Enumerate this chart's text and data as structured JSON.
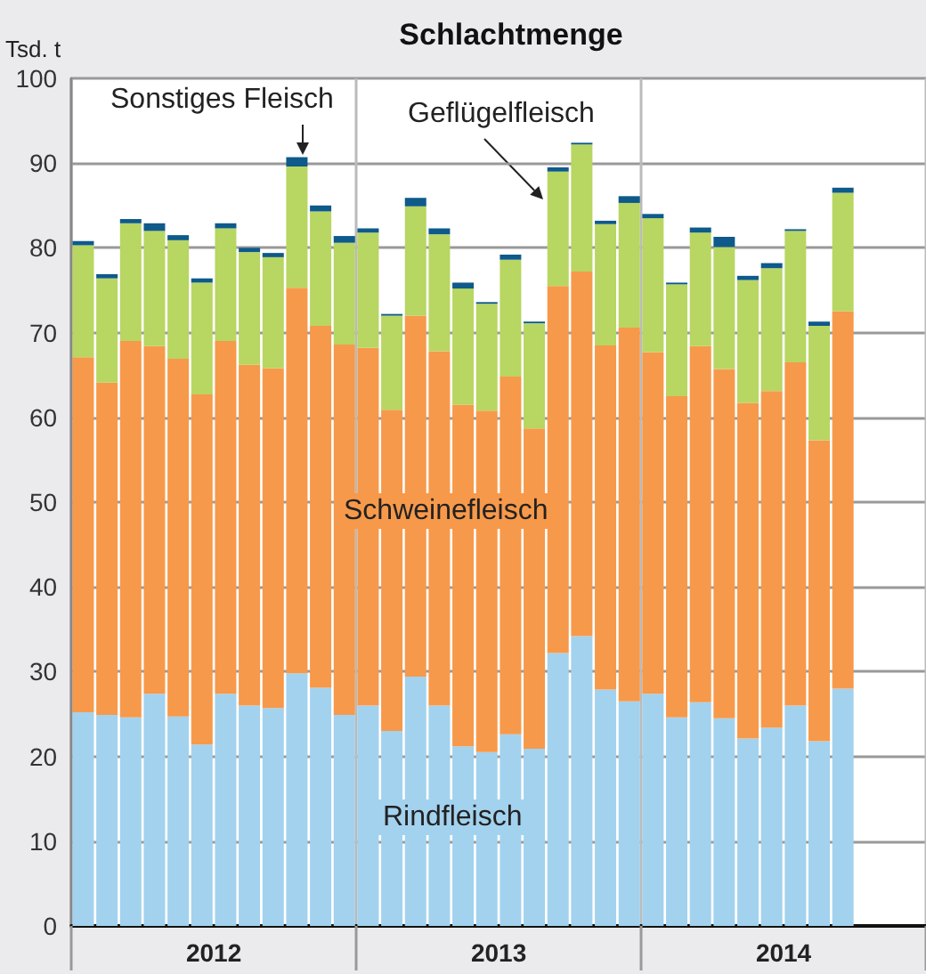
{
  "chart_data": {
    "type": "bar",
    "title": "Schlachtmenge",
    "ylabel": "Tsd. t",
    "stacked": true,
    "grid": true,
    "legend": false,
    "categories": [
      null,
      null,
      null,
      null,
      null,
      null,
      "2012",
      null,
      null,
      null,
      null,
      null,
      null,
      null,
      null,
      null,
      null,
      null,
      "2013",
      null,
      null,
      null,
      null,
      null,
      null,
      null,
      null,
      null,
      null,
      null,
      "2014",
      null,
      null,
      null,
      null,
      null
    ],
    "ylim": [
      0,
      100
    ],
    "yticks": [
      0,
      10,
      20,
      30,
      40,
      50,
      60,
      70,
      80,
      90,
      100
    ],
    "series": [
      {
        "name": "Rindfleisch",
        "color": "#a3d2ee",
        "values": [
          25.2,
          24.9,
          24.6,
          27.4,
          24.7,
          21.4,
          27.4,
          26.0,
          25.7,
          29.8,
          28.1,
          24.9,
          26.0,
          23.0,
          29.4,
          26.0,
          21.2,
          20.5,
          22.6,
          20.9,
          32.2,
          34.2,
          27.9,
          26.5,
          27.4,
          24.6,
          26.4,
          24.5,
          22.1,
          23.4,
          26.0,
          21.8,
          28.0,
          null,
          null,
          null
        ]
      },
      {
        "name": "Schweinefleisch",
        "color": "#f7994a",
        "values": [
          41.9,
          39.2,
          44.4,
          41.0,
          42.2,
          41.3,
          41.6,
          40.2,
          40.1,
          45.5,
          42.7,
          43.7,
          42.2,
          37.9,
          42.6,
          41.8,
          40.3,
          40.3,
          42.2,
          37.8,
          43.3,
          43.0,
          40.6,
          44.1,
          40.3,
          37.9,
          42.0,
          41.2,
          39.6,
          39.7,
          40.5,
          35.5,
          44.5,
          null,
          null,
          null
        ]
      },
      {
        "name": "Geflügelfleisch",
        "color": "#b8d662",
        "values": [
          13.2,
          12.3,
          13.9,
          13.6,
          14.0,
          13.2,
          13.3,
          13.3,
          13.1,
          14.3,
          13.5,
          12.0,
          13.6,
          11.1,
          12.9,
          13.8,
          13.7,
          12.6,
          13.8,
          12.4,
          13.5,
          15.0,
          14.3,
          14.7,
          15.8,
          13.2,
          13.4,
          14.4,
          14.5,
          14.5,
          15.5,
          13.5,
          14.0,
          null,
          null,
          null
        ]
      },
      {
        "name": "Sonstiges Fleisch",
        "color": "#0e5a8a",
        "values": [
          0.5,
          0.5,
          0.5,
          0.9,
          0.6,
          0.5,
          0.6,
          0.5,
          0.5,
          1.1,
          0.7,
          0.8,
          0.5,
          0.2,
          1.0,
          0.7,
          0.7,
          0.2,
          0.6,
          0.2,
          0.5,
          0.2,
          0.4,
          0.8,
          0.5,
          0.2,
          0.6,
          1.2,
          0.5,
          0.6,
          0.2,
          0.5,
          0.6,
          null,
          null,
          null
        ]
      }
    ]
  }
}
